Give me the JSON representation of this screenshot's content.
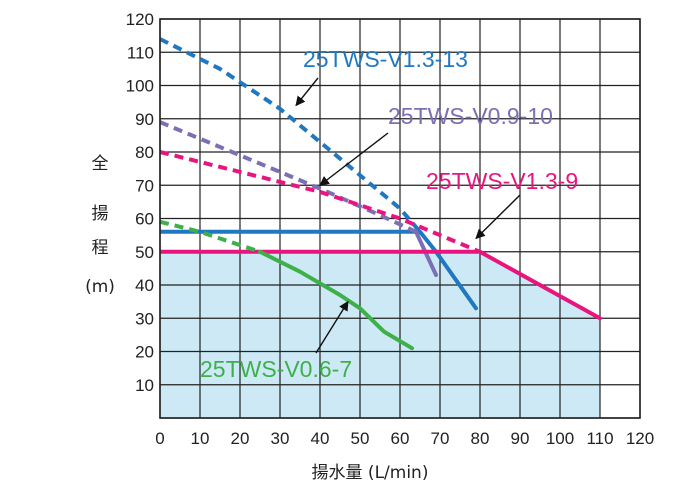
{
  "chart_data": {
    "type": "line",
    "xlabel": "揚水量 (L/min)",
    "ylabel": [
      "全",
      "揚",
      "程",
      "(m)"
    ],
    "xlim": [
      0,
      120
    ],
    "ylim": [
      0,
      120
    ],
    "x_ticks": [
      0,
      10,
      20,
      30,
      40,
      50,
      60,
      70,
      80,
      90,
      100,
      110,
      120
    ],
    "y_ticks": [
      10,
      20,
      30,
      40,
      50,
      60,
      70,
      80,
      90,
      100,
      110,
      120
    ],
    "grid": true,
    "operating_region_fill": "#cce9f5",
    "operating_region": [
      [
        0,
        50
      ],
      [
        80,
        50
      ],
      [
        110,
        30
      ],
      [
        110,
        0
      ],
      [
        0,
        0
      ]
    ],
    "series": [
      {
        "name": "25TWS-V1.3-13",
        "color": "#1f78c1",
        "dashed": [
          [
            0,
            114
          ],
          [
            15,
            105
          ],
          [
            30,
            93
          ],
          [
            45,
            78
          ],
          [
            60,
            63
          ],
          [
            65,
            56
          ]
        ],
        "solid_flat": [
          [
            0,
            56
          ],
          [
            65,
            56
          ]
        ],
        "solid": [
          [
            65,
            56
          ],
          [
            69,
            50
          ],
          [
            79,
            33
          ]
        ]
      },
      {
        "name": "25TWS-V0.9-10",
        "color": "#7b6fb6",
        "dashed": [
          [
            0,
            89
          ],
          [
            20,
            79
          ],
          [
            40,
            69
          ],
          [
            55,
            61
          ],
          [
            64,
            56
          ]
        ],
        "solid": [
          [
            64,
            56
          ],
          [
            69,
            43
          ]
        ]
      },
      {
        "name": "25TWS-V1.3-9",
        "color": "#e8157f",
        "dashed": [
          [
            0,
            80
          ],
          [
            20,
            74
          ],
          [
            40,
            68
          ],
          [
            60,
            60
          ],
          [
            80,
            50
          ]
        ],
        "solid_flat": [
          [
            0,
            50
          ],
          [
            80,
            50
          ]
        ],
        "solid": [
          [
            80,
            50
          ],
          [
            110,
            30
          ]
        ]
      },
      {
        "name": "25TWS-V0.6-7",
        "color": "#3eb04a",
        "dashed": [
          [
            0,
            59
          ],
          [
            10,
            56
          ],
          [
            20,
            52
          ],
          [
            25,
            50
          ]
        ],
        "solid": [
          [
            25,
            50
          ],
          [
            35,
            44
          ],
          [
            45,
            37
          ],
          [
            50,
            33
          ],
          [
            56,
            26
          ],
          [
            63,
            21
          ]
        ]
      }
    ],
    "annotations": [
      {
        "text": "25TWS-V1.3-13",
        "color": "#1f78c1",
        "arrow_to": [
          34,
          94
        ]
      },
      {
        "text": "25TWS-V0.9-10",
        "color": "#7b6fb6",
        "arrow_to": [
          40,
          70
        ]
      },
      {
        "text": "25TWS-V1.3-9",
        "color": "#e8157f",
        "arrow_to": [
          79,
          54
        ]
      },
      {
        "text": "25TWS-V0.6-7",
        "color": "#3eb04a",
        "arrow_to": [
          47,
          35
        ]
      }
    ]
  }
}
